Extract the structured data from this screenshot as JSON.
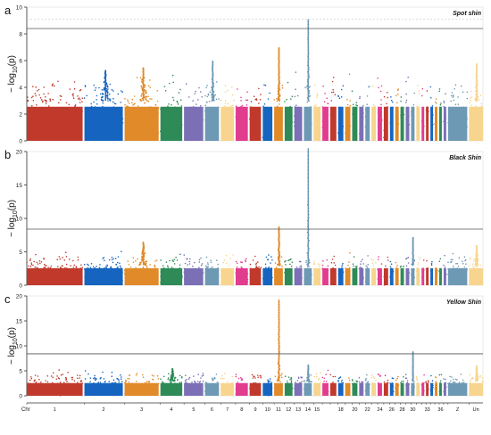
{
  "chart_data": [
    {
      "type": "scatter",
      "panel_letter": "a",
      "subtitle": "Spot shin",
      "ylabel_main": "− log",
      "ylabel_sub": "10",
      "ylabel_var": "(p)",
      "ylim": [
        0,
        10
      ],
      "yticks": [
        "0",
        "2",
        "4",
        "6",
        "8",
        "10"
      ],
      "threshold": 8.4,
      "secondary_threshold": 9.1,
      "baseline": 3.0,
      "peaks": [
        {
          "chr": "14",
          "value": 9.1
        },
        {
          "chr": "11",
          "value": 7.0
        },
        {
          "chr": "3",
          "value": 5.5
        },
        {
          "chr": "2",
          "value": 5.3
        },
        {
          "chr": "6",
          "value": 6.0
        },
        {
          "chr": "Un",
          "value": 5.8
        }
      ]
    },
    {
      "type": "scatter",
      "panel_letter": "b",
      "subtitle": "Black Shin",
      "ylabel_main": "− log",
      "ylabel_sub": "10",
      "ylabel_var": "(p)",
      "ylim": [
        0,
        20
      ],
      "yticks": [
        "0",
        "5",
        "10",
        "15",
        "20"
      ],
      "threshold": 8.4,
      "baseline": 3.0,
      "peaks": [
        {
          "chr": "14",
          "value": 20.5
        },
        {
          "chr": "11",
          "value": 8.8
        },
        {
          "chr": "30",
          "value": 7.2
        },
        {
          "chr": "3",
          "value": 6.5
        },
        {
          "chr": "Un",
          "value": 6.0
        }
      ]
    },
    {
      "type": "scatter",
      "panel_letter": "c",
      "subtitle": "Yellow Shin",
      "ylabel_main": "− log",
      "ylabel_sub": "10",
      "ylabel_var": "(p)",
      "ylim": [
        0,
        20
      ],
      "yticks": [
        "0",
        "5",
        "10",
        "15",
        "20"
      ],
      "threshold": 8.4,
      "baseline": 3.0,
      "peaks": [
        {
          "chr": "11",
          "value": 19.3
        },
        {
          "chr": "30",
          "value": 8.9
        },
        {
          "chr": "14",
          "value": 6.2
        },
        {
          "chr": "4",
          "value": 5.5
        },
        {
          "chr": "Un",
          "value": 6.0
        }
      ]
    }
  ],
  "chromosomes": [
    {
      "id": "1",
      "label": "1",
      "size": 64,
      "color": "#c0392b"
    },
    {
      "id": "2",
      "label": "2",
      "size": 44,
      "color": "#1565c0"
    },
    {
      "id": "3",
      "label": "3",
      "size": 39,
      "color": "#e08a2a"
    },
    {
      "id": "4",
      "label": "4",
      "size": 25,
      "color": "#2e8b57"
    },
    {
      "id": "5",
      "label": "5",
      "size": 22,
      "color": "#7b6fb5"
    },
    {
      "id": "6",
      "label": "6",
      "size": 16,
      "color": "#6e99b4"
    },
    {
      "id": "7",
      "label": "7",
      "size": 15,
      "color": "#f7d58e"
    },
    {
      "id": "8",
      "label": "8",
      "size": 14,
      "color": "#e23c8e"
    },
    {
      "id": "9",
      "label": "9",
      "size": 13,
      "color": "#c0392b"
    },
    {
      "id": "10",
      "label": "10",
      "size": 11,
      "color": "#1565c0"
    },
    {
      "id": "11",
      "label": "11",
      "size": 10,
      "color": "#e08a2a"
    },
    {
      "id": "12",
      "label": "12",
      "size": 9,
      "color": "#2e8b57"
    },
    {
      "id": "13",
      "label": "13",
      "size": 9,
      "color": "#7b6fb5"
    },
    {
      "id": "14",
      "label": "14",
      "size": 9,
      "color": "#6e99b4"
    },
    {
      "id": "15",
      "label": "15",
      "size": 8,
      "color": "#f7d58e"
    },
    {
      "id": "16",
      "label": "",
      "size": 7,
      "color": "#e23c8e"
    },
    {
      "id": "17",
      "label": "",
      "size": 7,
      "color": "#c0392b"
    },
    {
      "id": "18",
      "label": "18",
      "size": 6,
      "color": "#1565c0"
    },
    {
      "id": "19",
      "label": "",
      "size": 6,
      "color": "#e08a2a"
    },
    {
      "id": "20",
      "label": "20",
      "size": 6,
      "color": "#2e8b57"
    },
    {
      "id": "21",
      "label": "",
      "size": 5,
      "color": "#7b6fb5"
    },
    {
      "id": "22",
      "label": "22",
      "size": 5,
      "color": "#6e99b4"
    },
    {
      "id": "23",
      "label": "",
      "size": 5,
      "color": "#f7d58e"
    },
    {
      "id": "24",
      "label": "24",
      "size": 5,
      "color": "#e23c8e"
    },
    {
      "id": "25",
      "label": "",
      "size": 5,
      "color": "#c0392b"
    },
    {
      "id": "26",
      "label": "26",
      "size": 4,
      "color": "#1565c0"
    },
    {
      "id": "27",
      "label": "",
      "size": 4,
      "color": "#e08a2a"
    },
    {
      "id": "28",
      "label": "28",
      "size": 4,
      "color": "#2e8b57"
    },
    {
      "id": "29",
      "label": "",
      "size": 4,
      "color": "#7b6fb5"
    },
    {
      "id": "30",
      "label": "30",
      "size": 4,
      "color": "#6e99b4"
    },
    {
      "id": "31",
      "label": "",
      "size": 4,
      "color": "#f7d58e"
    },
    {
      "id": "32",
      "label": "",
      "size": 3,
      "color": "#e23c8e"
    },
    {
      "id": "33",
      "label": "33",
      "size": 3,
      "color": "#c0392b"
    },
    {
      "id": "34",
      "label": "",
      "size": 3,
      "color": "#1565c0"
    },
    {
      "id": "35",
      "label": "",
      "size": 3,
      "color": "#e08a2a"
    },
    {
      "id": "36",
      "label": "36",
      "size": 3,
      "color": "#2e8b57"
    },
    {
      "id": "37",
      "label": "",
      "size": 3,
      "color": "#7b6fb5"
    },
    {
      "id": "Z",
      "label": "Z",
      "size": 22,
      "color": "#6e99b4"
    },
    {
      "id": "Un",
      "label": "Un",
      "size": 16,
      "color": "#f7d58e"
    }
  ],
  "x_axis_title": "Chr",
  "threshold_color": "#555555",
  "secondary_threshold_color": "#bbbbbb",
  "axis_color": "#333333"
}
